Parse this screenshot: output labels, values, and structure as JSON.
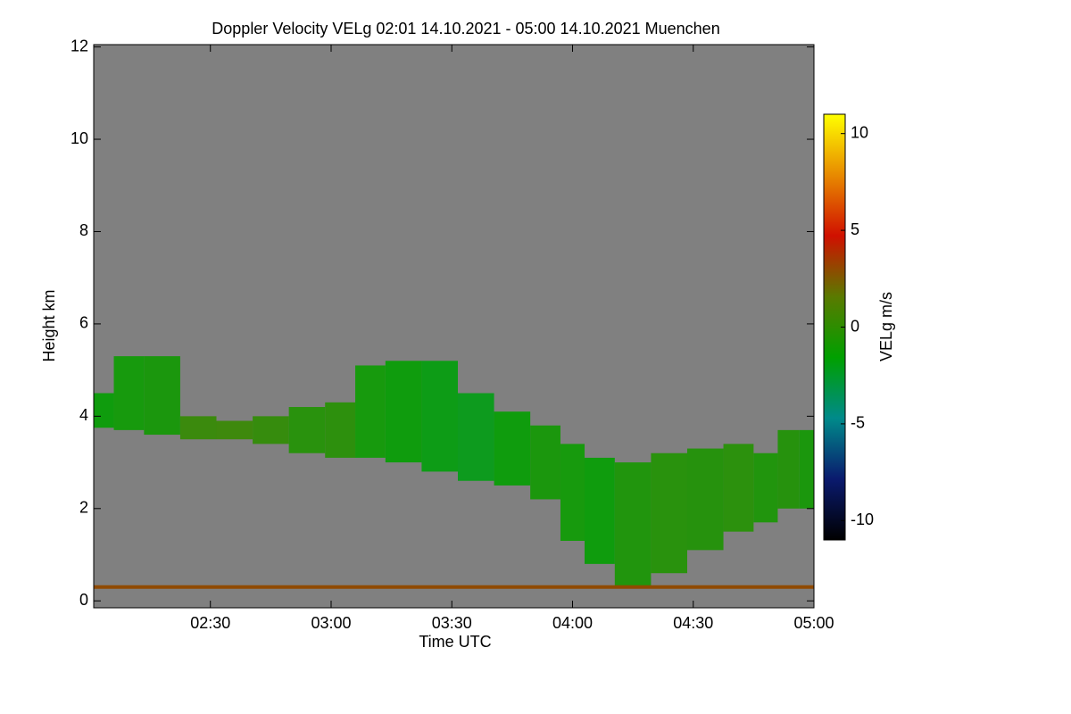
{
  "chart_data": {
    "type": "time-height",
    "title": "Doppler Velocity VELg   02:01 14.10.2021 - 05:00 14.10.2021 Muenchen",
    "x_label": "Time UTC",
    "y_label": "Height km",
    "colorbar_label": "VELg m/s",
    "xlim": [
      2.0167,
      5.0
    ],
    "xticks": [
      {
        "value": 2.5,
        "label": "02:30"
      },
      {
        "value": 3.0,
        "label": "03:00"
      },
      {
        "value": 3.5,
        "label": "03:30"
      },
      {
        "value": 4.0,
        "label": "04:00"
      },
      {
        "value": 4.5,
        "label": "04:30"
      },
      {
        "value": 5.0,
        "label": "05:00"
      }
    ],
    "ylim": [
      -0.15,
      12.05
    ],
    "yticks": [
      0,
      2,
      4,
      6,
      8,
      10,
      12
    ],
    "zlim": [
      -11,
      11
    ],
    "zticks": [
      -10,
      -5,
      0,
      5,
      10
    ],
    "colormap": [
      "#000000",
      "#0a1a6e",
      "#008a8a",
      "#00a000",
      "#5a7a00",
      "#d01000",
      "#e88a00",
      "#ffff00"
    ],
    "background": "#808080",
    "echo": {
      "x": [
        2.05,
        2.15,
        2.3,
        2.45,
        2.6,
        2.75,
        2.9,
        3.05,
        3.15,
        3.3,
        3.45,
        3.6,
        3.75,
        3.9,
        4.0,
        4.1,
        4.25,
        4.4,
        4.55,
        4.7,
        4.8,
        4.9,
        4.98
      ],
      "top": [
        4.5,
        5.3,
        5.3,
        4.0,
        3.9,
        4.0,
        4.2,
        4.3,
        5.1,
        5.2,
        5.2,
        4.5,
        4.1,
        3.8,
        3.4,
        3.1,
        3.0,
        3.2,
        3.3,
        3.4,
        3.2,
        3.7,
        3.7
      ],
      "bottom": [
        3.75,
        3.7,
        3.6,
        3.5,
        3.5,
        3.4,
        3.2,
        3.1,
        3.1,
        3.0,
        2.8,
        2.6,
        2.5,
        2.2,
        1.3,
        0.8,
        0.3,
        0.6,
        1.1,
        1.5,
        1.7,
        2.0,
        2.0
      ],
      "velocity": [
        -1.5,
        -1.2,
        -1.0,
        0.2,
        0.3,
        0.0,
        -0.5,
        -0.3,
        -1.2,
        -1.5,
        -1.8,
        -2.0,
        -1.5,
        -1.0,
        -1.2,
        -1.5,
        -0.8,
        -0.5,
        -0.6,
        -0.4,
        -0.8,
        -0.6,
        -1.0
      ]
    },
    "surface_layer": {
      "height": 0.3,
      "velocity": 3
    }
  }
}
